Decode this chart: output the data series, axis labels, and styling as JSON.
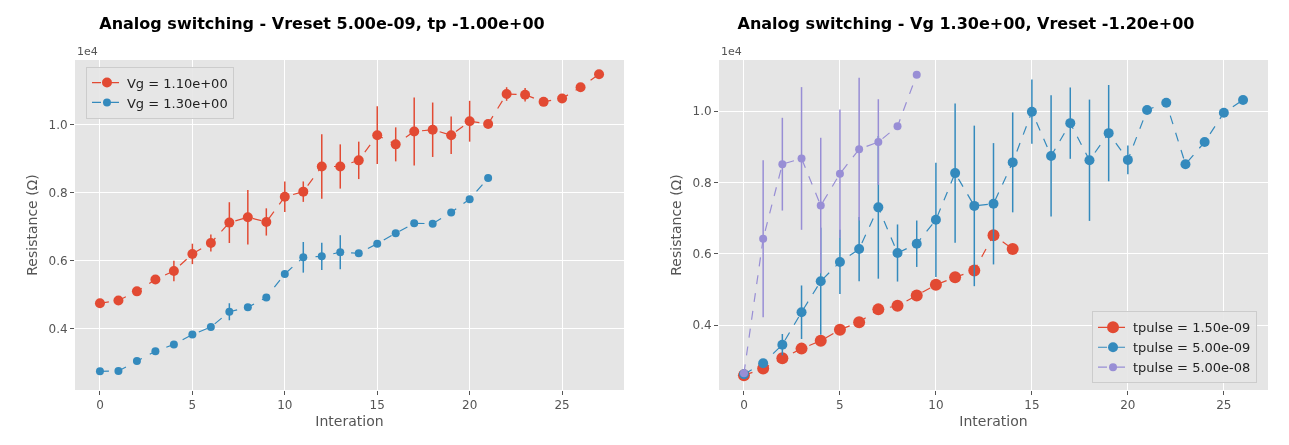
{
  "chart_data": [
    {
      "type": "line",
      "title": "Analog switching - Vreset 5.00e-09, tp -1.00e+00",
      "xlabel": "Interation",
      "ylabel": "Resistance (Ω)",
      "annotations": [
        "1e4"
      ],
      "x": [
        0,
        1,
        2,
        3,
        4,
        5,
        6,
        7,
        8,
        9,
        10,
        11,
        12,
        13,
        14,
        15,
        16,
        17,
        18,
        19,
        20,
        21,
        22,
        23,
        24,
        25,
        26,
        27
      ],
      "series": [
        {
          "name": "Vg = 1.10e+00",
          "color": "#e24a33",
          "values": [
            0.475,
            0.483,
            0.51,
            0.545,
            0.57,
            0.62,
            0.652,
            0.712,
            0.728,
            0.714,
            0.788,
            0.803,
            0.877,
            0.877,
            0.895,
            0.969,
            0.942,
            0.98,
            0.985,
            0.969,
            1.01,
            1.002,
            1.09,
            1.088,
            1.067,
            1.077,
            1.11,
            1.148
          ],
          "errors": [
            null,
            null,
            null,
            null,
            0.03,
            0.03,
            0.025,
            0.06,
            0.08,
            0.04,
            0.045,
            0.03,
            0.095,
            0.065,
            0.055,
            0.085,
            0.05,
            0.1,
            0.08,
            0.055,
            0.06,
            null,
            0.02,
            0.02,
            null,
            null,
            null,
            null
          ]
        },
        {
          "name": "Vg = 1.30e+00",
          "color": "#348abd",
          "x": [
            0,
            1,
            2,
            3,
            4,
            5,
            6,
            7,
            8,
            9,
            10,
            11,
            12,
            13,
            14,
            15,
            16,
            17,
            18,
            19,
            20,
            21
          ],
          "values": [
            0.275,
            0.276,
            0.305,
            0.334,
            0.354,
            0.383,
            0.405,
            0.45,
            0.463,
            0.492,
            0.561,
            0.61,
            0.613,
            0.625,
            0.622,
            0.65,
            0.681,
            0.71,
            0.709,
            0.742,
            0.781,
            0.843
          ],
          "errors": [
            null,
            null,
            null,
            null,
            null,
            null,
            null,
            0.025,
            null,
            null,
            null,
            0.045,
            0.04,
            0.05,
            null,
            null,
            null,
            null,
            null,
            null,
            null,
            null
          ]
        }
      ],
      "xlim": [
        -1.35,
        28.35
      ],
      "xticks": [
        0,
        5,
        10,
        15,
        20,
        25
      ],
      "ylim": [
        0.22,
        1.19
      ],
      "yticks": [
        0.4,
        0.6,
        0.8,
        {
          "value": 1,
          "label": "1.0"
        }
      ],
      "grid": true,
      "legend": "top left",
      "marker": "circle",
      "line_style": "dashed"
    },
    {
      "type": "line",
      "title": "Analog switching - Vg 1.30e+00, Vreset -1.20e+00",
      "xlabel": "Interation",
      "ylabel": "Resistance (Ω)",
      "annotations": [
        "1e4"
      ],
      "x": [
        0,
        1,
        2,
        3,
        4,
        5,
        6,
        7,
        8,
        9,
        10,
        11,
        12,
        13,
        14,
        15,
        16,
        17,
        18,
        19,
        20,
        21,
        22,
        23,
        24,
        25,
        26
      ],
      "series": [
        {
          "name": "tpulse = 1.50e-09",
          "color": "#e24a33",
          "x": [
            0,
            1,
            2,
            3,
            4,
            5,
            6,
            7,
            8,
            9,
            10,
            11,
            12,
            13,
            14
          ],
          "values": [
            0.259,
            0.278,
            0.307,
            0.334,
            0.356,
            0.387,
            0.408,
            0.444,
            0.454,
            0.483,
            0.513,
            0.534,
            0.553,
            0.652,
            0.613
          ]
        },
        {
          "name": "tpulse = 5.00e-09",
          "color": "#348abd",
          "values": [
            0.262,
            0.293,
            0.345,
            0.436,
            0.523,
            0.577,
            0.613,
            0.73,
            0.602,
            0.628,
            0.695,
            0.826,
            0.734,
            0.74,
            0.856,
            0.998,
            0.874,
            0.966,
            0.862,
            0.938,
            0.863,
            1.003,
            1.023,
            0.851,
            0.913,
            0.995,
            1.031
          ],
          "errors": [
            null,
            null,
            0.03,
            0.075,
            0.15,
            0.09,
            0.09,
            0.2,
            0.08,
            0.065,
            0.16,
            0.195,
            0.225,
            0.17,
            0.14,
            0.09,
            0.17,
            0.1,
            0.17,
            0.135,
            0.04,
            null,
            null,
            null,
            null,
            null,
            null
          ]
        },
        {
          "name": "tpulse = 5.00e-08",
          "color": "#988ed5",
          "x": [
            0,
            1,
            2,
            3,
            4,
            5,
            6,
            7,
            8,
            9
          ],
          "values": [
            0.265,
            0.642,
            0.851,
            0.867,
            0.735,
            0.824,
            0.893,
            0.913,
            0.957,
            1.102
          ],
          "errors": [
            null,
            0.22,
            0.13,
            0.2,
            0.19,
            0.18,
            0.2,
            0.12,
            null,
            null
          ]
        }
      ],
      "xlim": [
        -1.3,
        27.3
      ],
      "xticks": [
        0,
        5,
        10,
        15,
        20,
        25
      ],
      "ylim": [
        0.218,
        1.143
      ],
      "yticks": [
        0.4,
        0.6,
        0.8,
        {
          "value": 1,
          "label": "1.0"
        }
      ],
      "grid": true,
      "legend": "bottom right",
      "marker": "circle",
      "line_style": "dashed"
    }
  ]
}
